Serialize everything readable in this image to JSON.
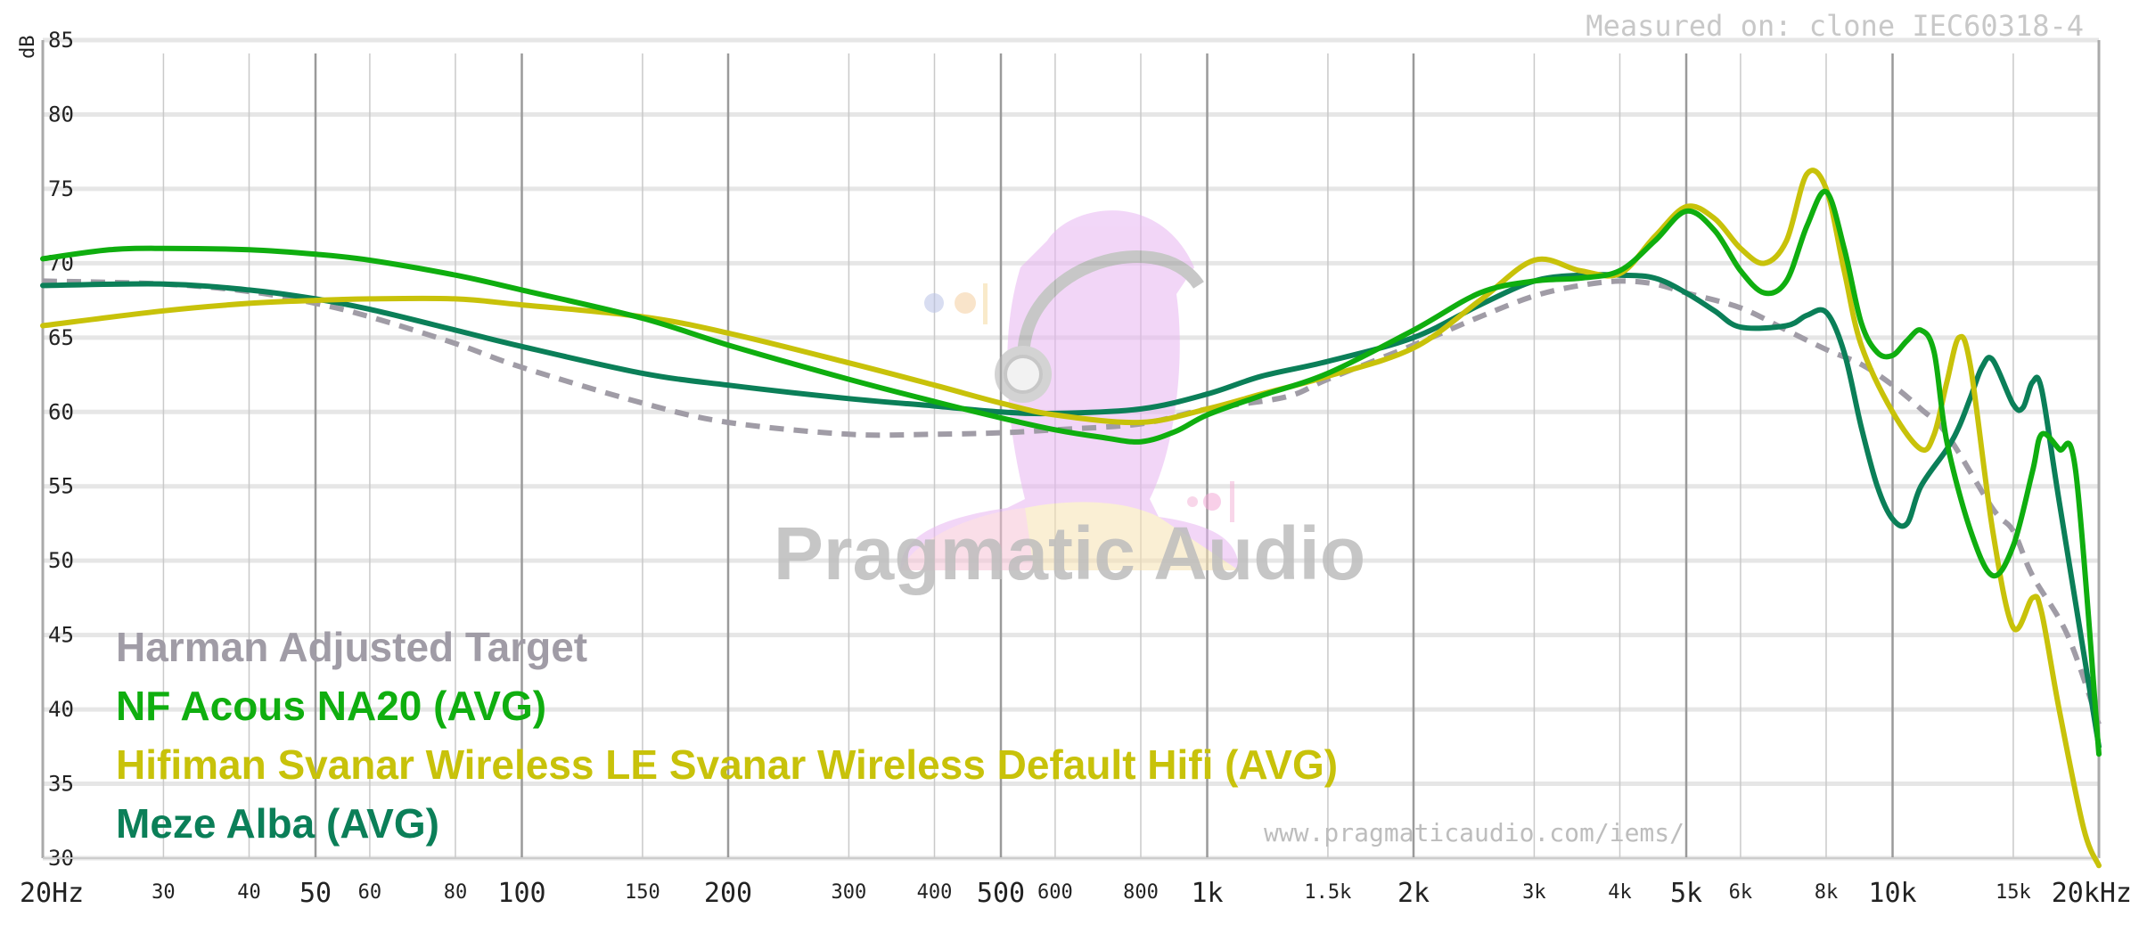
{
  "measured_note": "Measured on: clone IEC60318-4",
  "url_note": "www.pragmaticaudio.com/iems/",
  "watermark": "Pragmatic Audio",
  "chart_data": {
    "type": "line",
    "title": "",
    "xlabel": "",
    "ylabel": "dB",
    "x_scale": "log",
    "xlim": [
      20,
      20000
    ],
    "ylim": [
      30,
      85
    ],
    "grid": true,
    "legend_position": "bottom-left",
    "y_ticks": [
      {
        "value": 85,
        "label": "85"
      },
      {
        "value": 80,
        "label": "80"
      },
      {
        "value": 75,
        "label": "75"
      },
      {
        "value": 70,
        "label": "70"
      },
      {
        "value": 65,
        "label": "65"
      },
      {
        "value": 60,
        "label": "60"
      },
      {
        "value": 55,
        "label": "55"
      },
      {
        "value": 50,
        "label": "50"
      },
      {
        "value": 45,
        "label": "45"
      },
      {
        "value": 40,
        "label": "40"
      },
      {
        "value": 35,
        "label": "35"
      },
      {
        "value": 30,
        "label": "30"
      }
    ],
    "x_ticks": [
      {
        "value": 20,
        "label": "20Hz",
        "major": true
      },
      {
        "value": 30,
        "label": "30",
        "major": false
      },
      {
        "value": 40,
        "label": "40",
        "major": false
      },
      {
        "value": 50,
        "label": "50",
        "major": true
      },
      {
        "value": 60,
        "label": "60",
        "major": false
      },
      {
        "value": 80,
        "label": "80",
        "major": false
      },
      {
        "value": 100,
        "label": "100",
        "major": true
      },
      {
        "value": 150,
        "label": "150",
        "major": false
      },
      {
        "value": 200,
        "label": "200",
        "major": true
      },
      {
        "value": 300,
        "label": "300",
        "major": false
      },
      {
        "value": 400,
        "label": "400",
        "major": false
      },
      {
        "value": 500,
        "label": "500",
        "major": true
      },
      {
        "value": 600,
        "label": "600",
        "major": false
      },
      {
        "value": 800,
        "label": "800",
        "major": false
      },
      {
        "value": 1000,
        "label": "1k",
        "major": true
      },
      {
        "value": 1500,
        "label": "1.5k",
        "major": false
      },
      {
        "value": 2000,
        "label": "2k",
        "major": true
      },
      {
        "value": 3000,
        "label": "3k",
        "major": false
      },
      {
        "value": 4000,
        "label": "4k",
        "major": false
      },
      {
        "value": 5000,
        "label": "5k",
        "major": true
      },
      {
        "value": 6000,
        "label": "6k",
        "major": false
      },
      {
        "value": 8000,
        "label": "8k",
        "major": false
      },
      {
        "value": 10000,
        "label": "10k",
        "major": true
      },
      {
        "value": 15000,
        "label": "15k",
        "major": false
      },
      {
        "value": 20000,
        "label": "20kHz",
        "major": true
      }
    ],
    "series": [
      {
        "name": "Harman Adjusted Target",
        "color": "#a09ca6",
        "dashed": true,
        "points": [
          [
            20,
            68.8
          ],
          [
            30,
            68.6
          ],
          [
            40,
            68.1
          ],
          [
            50,
            67.3
          ],
          [
            60,
            66.4
          ],
          [
            80,
            64.6
          ],
          [
            100,
            63.0
          ],
          [
            150,
            60.6
          ],
          [
            200,
            59.3
          ],
          [
            300,
            58.5
          ],
          [
            400,
            58.5
          ],
          [
            500,
            58.6
          ],
          [
            600,
            58.8
          ],
          [
            800,
            59.2
          ],
          [
            1000,
            60.2
          ],
          [
            1300,
            61.0
          ],
          [
            1500,
            62.2
          ],
          [
            2000,
            64.5
          ],
          [
            2500,
            66.4
          ],
          [
            3000,
            67.8
          ],
          [
            3500,
            68.5
          ],
          [
            4000,
            68.8
          ],
          [
            4500,
            68.6
          ],
          [
            5000,
            68.0
          ],
          [
            6000,
            67.0
          ],
          [
            7000,
            65.5
          ],
          [
            8000,
            64.2
          ],
          [
            9000,
            63.2
          ],
          [
            10000,
            61.8
          ],
          [
            11000,
            60.2
          ],
          [
            12000,
            58.5
          ],
          [
            14000,
            53.5
          ],
          [
            15000,
            52.0
          ],
          [
            16000,
            49.0
          ],
          [
            18000,
            45.0
          ],
          [
            20000,
            39.0
          ]
        ]
      },
      {
        "name": "NF Acous NA20 (AVG)",
        "color": "#0fae0f",
        "dashed": false,
        "points": [
          [
            20,
            70.3
          ],
          [
            25,
            70.9
          ],
          [
            30,
            71.0
          ],
          [
            40,
            70.9
          ],
          [
            50,
            70.6
          ],
          [
            60,
            70.2
          ],
          [
            80,
            69.2
          ],
          [
            100,
            68.2
          ],
          [
            150,
            66.3
          ],
          [
            200,
            64.5
          ],
          [
            300,
            62.2
          ],
          [
            400,
            60.7
          ],
          [
            500,
            59.6
          ],
          [
            600,
            58.8
          ],
          [
            700,
            58.3
          ],
          [
            800,
            58.0
          ],
          [
            900,
            58.7
          ],
          [
            1000,
            59.8
          ],
          [
            1200,
            61.1
          ],
          [
            1500,
            62.6
          ],
          [
            2000,
            65.5
          ],
          [
            2500,
            68.0
          ],
          [
            3000,
            68.8
          ],
          [
            3500,
            69.0
          ],
          [
            4000,
            69.5
          ],
          [
            4500,
            71.5
          ],
          [
            5000,
            73.5
          ],
          [
            5500,
            72.2
          ],
          [
            6000,
            69.5
          ],
          [
            6500,
            68.0
          ],
          [
            7000,
            68.8
          ],
          [
            7500,
            72.5
          ],
          [
            8000,
            74.8
          ],
          [
            8500,
            71.0
          ],
          [
            9000,
            66.0
          ],
          [
            9500,
            64.0
          ],
          [
            10000,
            63.8
          ],
          [
            10500,
            64.8
          ],
          [
            11000,
            65.5
          ],
          [
            11500,
            64.0
          ],
          [
            12000,
            58.0
          ],
          [
            13000,
            52.0
          ],
          [
            14000,
            49.0
          ],
          [
            15000,
            51.0
          ],
          [
            16000,
            56.0
          ],
          [
            16500,
            58.5
          ],
          [
            17500,
            57.5
          ],
          [
            18500,
            56.0
          ],
          [
            20000,
            37.0
          ]
        ]
      },
      {
        "name": "Hifiman Svanar Wireless LE Svanar Wireless Default Hifi (AVG)",
        "color": "#c8c20a",
        "dashed": false,
        "points": [
          [
            20,
            65.8
          ],
          [
            30,
            66.8
          ],
          [
            40,
            67.3
          ],
          [
            50,
            67.5
          ],
          [
            60,
            67.6
          ],
          [
            80,
            67.6
          ],
          [
            100,
            67.2
          ],
          [
            150,
            66.4
          ],
          [
            200,
            65.3
          ],
          [
            300,
            63.3
          ],
          [
            400,
            61.8
          ],
          [
            500,
            60.6
          ],
          [
            600,
            59.8
          ],
          [
            800,
            59.3
          ],
          [
            1000,
            60.2
          ],
          [
            1200,
            61.2
          ],
          [
            1500,
            62.4
          ],
          [
            2000,
            64.3
          ],
          [
            2500,
            67.5
          ],
          [
            3000,
            70.2
          ],
          [
            3500,
            69.5
          ],
          [
            4000,
            69.3
          ],
          [
            4500,
            71.8
          ],
          [
            5000,
            73.8
          ],
          [
            5500,
            73.0
          ],
          [
            6000,
            71.0
          ],
          [
            6500,
            70.0
          ],
          [
            7000,
            71.5
          ],
          [
            7500,
            76.0
          ],
          [
            8000,
            75.0
          ],
          [
            8500,
            69.5
          ],
          [
            9000,
            64.5
          ],
          [
            10000,
            60.0
          ],
          [
            11000,
            57.5
          ],
          [
            11500,
            58.5
          ],
          [
            12000,
            62.0
          ],
          [
            12500,
            65.0
          ],
          [
            13000,
            63.0
          ],
          [
            14000,
            52.0
          ],
          [
            15000,
            45.5
          ],
          [
            16000,
            47.5
          ],
          [
            16500,
            46.5
          ],
          [
            17500,
            40.0
          ],
          [
            19000,
            32.0
          ],
          [
            20000,
            29.5
          ]
        ]
      },
      {
        "name": "Meze Alba (AVG)",
        "color": "#0b7f58",
        "dashed": false,
        "points": [
          [
            20,
            68.5
          ],
          [
            30,
            68.6
          ],
          [
            40,
            68.2
          ],
          [
            50,
            67.6
          ],
          [
            60,
            66.9
          ],
          [
            80,
            65.5
          ],
          [
            100,
            64.4
          ],
          [
            150,
            62.6
          ],
          [
            200,
            61.8
          ],
          [
            300,
            60.9
          ],
          [
            400,
            60.4
          ],
          [
            500,
            60.0
          ],
          [
            600,
            59.9
          ],
          [
            800,
            60.2
          ],
          [
            1000,
            61.2
          ],
          [
            1200,
            62.4
          ],
          [
            1500,
            63.4
          ],
          [
            2000,
            65.0
          ],
          [
            2500,
            67.2
          ],
          [
            3000,
            68.8
          ],
          [
            3500,
            69.2
          ],
          [
            4000,
            69.2
          ],
          [
            4500,
            69.0
          ],
          [
            5000,
            68.0
          ],
          [
            5500,
            66.8
          ],
          [
            6000,
            65.7
          ],
          [
            7000,
            65.8
          ],
          [
            7500,
            66.5
          ],
          [
            8000,
            66.7
          ],
          [
            8500,
            64.0
          ],
          [
            9000,
            59.0
          ],
          [
            9500,
            55.0
          ],
          [
            10000,
            52.8
          ],
          [
            10500,
            52.5
          ],
          [
            11000,
            55.0
          ],
          [
            12000,
            57.5
          ],
          [
            12500,
            59.0
          ],
          [
            13000,
            61.0
          ],
          [
            13500,
            63.0
          ],
          [
            14000,
            63.5
          ],
          [
            15000,
            60.5
          ],
          [
            15500,
            60.3
          ],
          [
            16000,
            62.0
          ],
          [
            16500,
            61.5
          ],
          [
            17500,
            54.0
          ],
          [
            20000,
            37.5
          ]
        ]
      }
    ]
  }
}
